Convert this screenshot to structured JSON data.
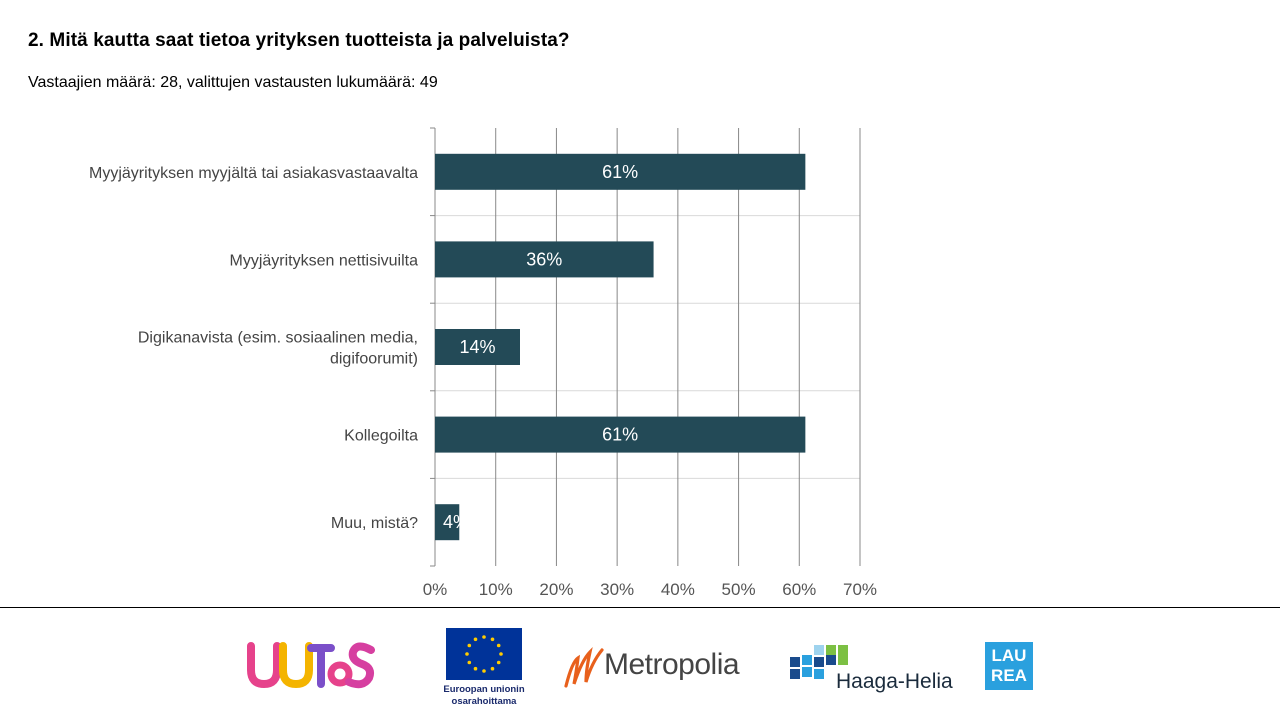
{
  "page": {
    "title": "2. Mitä kautta saat tietoa yrityksen tuotteista ja palveluista?",
    "subtitle": "Vastaajien määrä: 28, valittujen vastausten lukumäärä: 49"
  },
  "chart_data": {
    "type": "bar",
    "orientation": "horizontal",
    "categories": [
      [
        "Myyjäyrityksen myyjältä tai asiakasvastaavalta"
      ],
      [
        "Myyjäyrityksen nettisivuilta"
      ],
      [
        "Digikanavista (esim. sosiaalinen media,",
        "digifoorumit)"
      ],
      [
        "Kollegoilta"
      ],
      [
        "Muu, mistä?"
      ]
    ],
    "values": [
      61,
      36,
      14,
      61,
      4
    ],
    "data_labels": [
      "61%",
      "36%",
      "14%",
      "61%",
      "4%"
    ],
    "xlim": [
      0,
      70
    ],
    "x_ticks": [
      "0%",
      "10%",
      "20%",
      "30%",
      "40%",
      "50%",
      "60%",
      "70%"
    ],
    "bar_color": "#234a57",
    "grid": true
  },
  "footer": {
    "eu_caption": [
      "Euroopan unionin",
      "osarahoittama"
    ],
    "metropolia": "Metropolia",
    "haaga_helia": "Haaga-Helia",
    "laurea": [
      "LAU",
      "REA"
    ],
    "uutos": "UUTOS",
    "colors": {
      "eu_blue": "#003399",
      "eu_star": "#ffcc00",
      "metropolia_orange": "#e8601c",
      "haaga_blue": "#2aa0de",
      "laurea_blue": "#2aa0de"
    }
  }
}
